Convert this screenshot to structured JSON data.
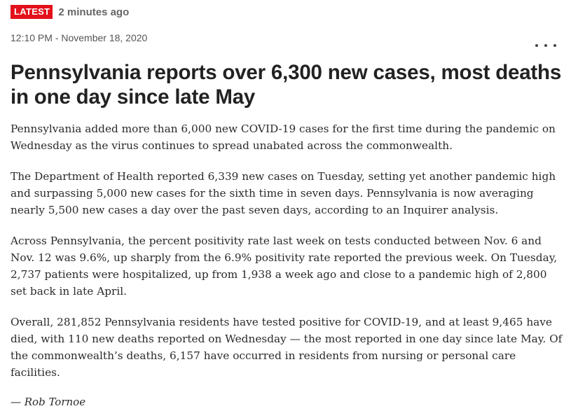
{
  "post": {
    "badge": "LATEST",
    "time_ago": "2 minutes ago",
    "timestamp": "12:10 PM - November 18, 2020",
    "menu_icon": "more-horizontal-icon",
    "headline": "Pennsylvania reports over 6,300 new cases, most deaths in one day since late May",
    "paragraphs": [
      "Pennsylvania added more than 6,000 new COVID-19 cases for the first time during the pandemic on Wednesday as the virus continues to spread unabated across the commonwealth.",
      "The Department of Health reported 6,339 new cases on Tuesday, setting yet another pandemic high and surpassing 5,000 new cases for the sixth time in seven days. Pennsylvania is now averaging nearly 5,500 new cases a day over the past seven days, according to an Inquirer analysis.",
      "Across Pennsylvania, the percent positivity rate last week on tests conducted between Nov. 6 and Nov. 12 was 9.6%, up sharply from the 6.9% positivity rate reported the previous week. On Tuesday, 2,737 patients were hospitalized, up from 1,938 a week ago and close to a pandemic high of 2,800 set back in late April.",
      "Overall, 281,852 Pennsylvania residents have tested positive for COVID-19, and at least 9,465 have died, with 110 new deaths reported on Wednesday — the most reported in one day since late May. Of the commonwealth’s deaths, 6,157 have occurred in residents from nursing or personal care facilities."
    ],
    "byline": "— Rob Tornoe"
  },
  "colors": {
    "badge_bg": "#e3111b",
    "badge_text": "#ffffff",
    "meta_text": "#666666",
    "body_text": "#2a2a2a"
  }
}
